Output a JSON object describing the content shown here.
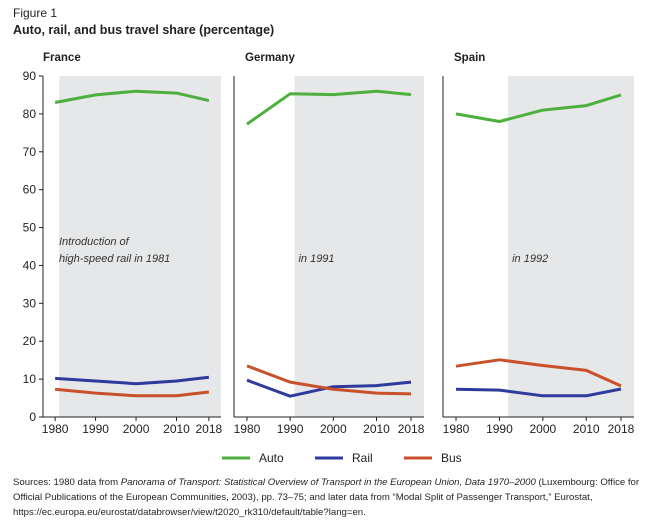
{
  "figure": {
    "label": "Figure 1",
    "title": "Auto, rail, and bus travel share (percentage)"
  },
  "chart_data": {
    "type": "line",
    "title": "Auto, rail, and bus travel share (percentage)",
    "ylim": [
      0,
      90
    ],
    "yticks": [
      0,
      10,
      20,
      30,
      40,
      50,
      60,
      70,
      80,
      90
    ],
    "xlim": [
      1977,
      2021
    ],
    "x": [
      1980,
      1990,
      2000,
      2010,
      2018
    ],
    "xtick_labels": [
      "1980",
      "1990",
      "2000",
      "2010",
      "2018"
    ],
    "legend": [
      {
        "name": "Auto",
        "color": "#4caf3e"
      },
      {
        "name": "Rail",
        "color": "#2e3a9c"
      },
      {
        "name": "Bus",
        "color": "#c8502a"
      }
    ],
    "panels": [
      {
        "name": "France",
        "shade_from": 1981,
        "annotation_lines": [
          "Introduction of",
          "high-speed rail in 1981"
        ],
        "series": [
          {
            "name": "Auto",
            "values": [
              83,
              85,
              86,
              85.5,
              83.5
            ]
          },
          {
            "name": "Rail",
            "values": [
              10.2,
              9.5,
              8.8,
              9.5,
              10.5
            ]
          },
          {
            "name": "Bus",
            "values": [
              7.3,
              6.3,
              5.6,
              5.6,
              6.6
            ]
          }
        ]
      },
      {
        "name": "Germany",
        "shade_from": 1991,
        "annotation_lines": [
          "in 1991"
        ],
        "series": [
          {
            "name": "Auto",
            "values": [
              77.3,
              85.3,
              85.1,
              86,
              85.1
            ]
          },
          {
            "name": "Rail",
            "values": [
              9.7,
              5.5,
              8,
              8.3,
              9.2
            ]
          },
          {
            "name": "Bus",
            "values": [
              13.5,
              9.2,
              7.3,
              6.3,
              6.1
            ]
          }
        ]
      },
      {
        "name": "Spain",
        "shade_from": 1992,
        "annotation_lines": [
          "in 1992"
        ],
        "series": [
          {
            "name": "Auto",
            "values": [
              80,
              78,
              81,
              82.2,
              85
            ]
          },
          {
            "name": "Rail",
            "values": [
              7.3,
              7.1,
              5.6,
              5.6,
              7.4
            ]
          },
          {
            "name": "Bus",
            "values": [
              13.4,
              15.1,
              13.6,
              12.3,
              8.2
            ]
          }
        ]
      }
    ]
  },
  "sources": {
    "prefix": "Sources: 1980 data from ",
    "title1": "Panorama of Transport: Statistical Overview of Transport in the European Union, Data 1970–2000",
    "middle": " (Luxembourg: Office for Official Publications of the European Communities, 2003), pp. 73–75; and later data from “Modal Split of Passenger Transport,” Eurostat, https://ec.europa.eu/eurostat/databrowser/view/t2020_rk310/default/table?lang=en."
  },
  "colors": {
    "shade": "#e6e7e8",
    "axis": "#231f20"
  }
}
